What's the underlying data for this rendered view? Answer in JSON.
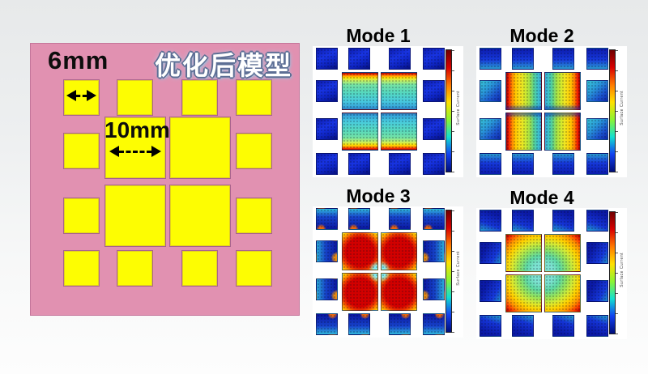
{
  "background": {
    "top_color": "#e7e9ea",
    "bottom_color": "#fdfdfd"
  },
  "left_panel": {
    "title": "优化后模型",
    "small_dim_label": "6mm",
    "large_dim_label": "10mm",
    "substrate_color": "#e191b1",
    "patch_color": "#fdfd02",
    "patch_border_color": "#a8638d",
    "grid": [
      [
        "S",
        "S",
        "S",
        "S"
      ],
      [
        "S",
        "L",
        "L",
        "S"
      ],
      [
        "S",
        "L",
        "L",
        "S"
      ],
      [
        "S",
        "S",
        "S",
        "S"
      ]
    ]
  },
  "mode_panels": [
    {
      "label": "Mode 1",
      "pattern": "vertical"
    },
    {
      "label": "Mode 2",
      "pattern": "horizontal"
    },
    {
      "label": "Mode 3",
      "pattern": "full"
    },
    {
      "label": "Mode 4",
      "pattern": "corner"
    }
  ],
  "colorbar": {
    "label": "Surface Current",
    "gradient": [
      "#6f0000",
      "#d80000",
      "#ff7a00",
      "#ffe100",
      "#8cf432",
      "#12e0d0",
      "#1240f0",
      "#000d7a"
    ],
    "tick_count": 7
  }
}
